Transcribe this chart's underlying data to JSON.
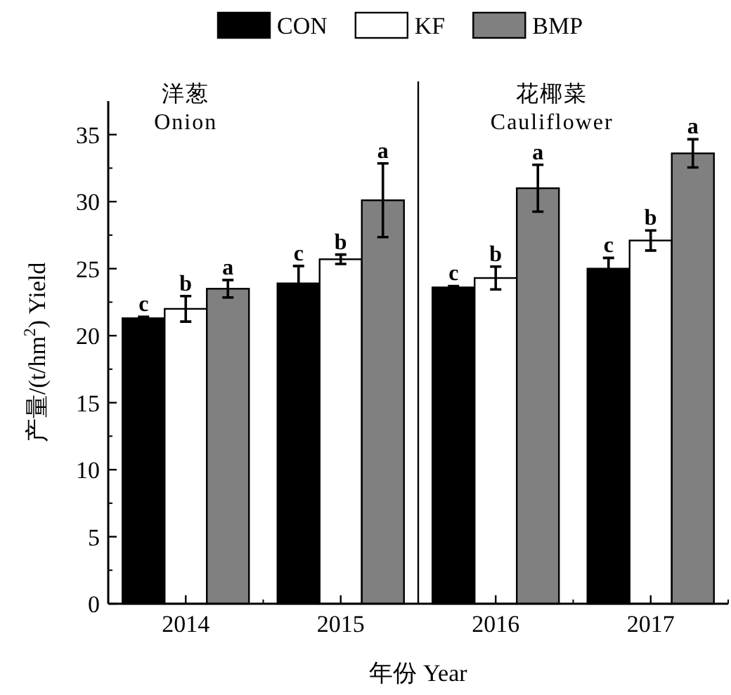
{
  "chart_data": {
    "type": "bar",
    "xlabel": "年份 Year",
    "ylabel": "产量/(t/hm$^{2}$) Yield",
    "categories": [
      "2014",
      "2015",
      "2016",
      "2017"
    ],
    "series": [
      {
        "name": "CON",
        "color": "#000000",
        "values": [
          21.3,
          23.9,
          23.6,
          25.0
        ],
        "errors": [
          0.1,
          1.3,
          0.1,
          0.8
        ],
        "value_labels": [
          "c",
          "c",
          "c",
          "c"
        ]
      },
      {
        "name": "KF",
        "color": "#ffffff",
        "values": [
          22.0,
          25.7,
          24.3,
          27.1
        ],
        "errors": [
          0.95,
          0.35,
          0.85,
          0.75
        ],
        "value_labels": [
          "b",
          "b",
          "b",
          "b"
        ]
      },
      {
        "name": "BMP",
        "color": "#808080",
        "values": [
          23.5,
          30.1,
          31.0,
          33.6
        ],
        "errors": [
          0.65,
          2.75,
          1.75,
          1.05
        ],
        "value_labels": [
          "a",
          "a",
          "a",
          "a"
        ]
      }
    ],
    "ylim": [
      0,
      37.5
    ],
    "yticks": [
      0,
      5,
      10,
      15,
      20,
      25,
      30,
      35
    ],
    "annotations": [
      "洋葱",
      "Onion",
      "花椰菜",
      "Cauliflower"
    ],
    "legend": "top",
    "grid": false
  }
}
